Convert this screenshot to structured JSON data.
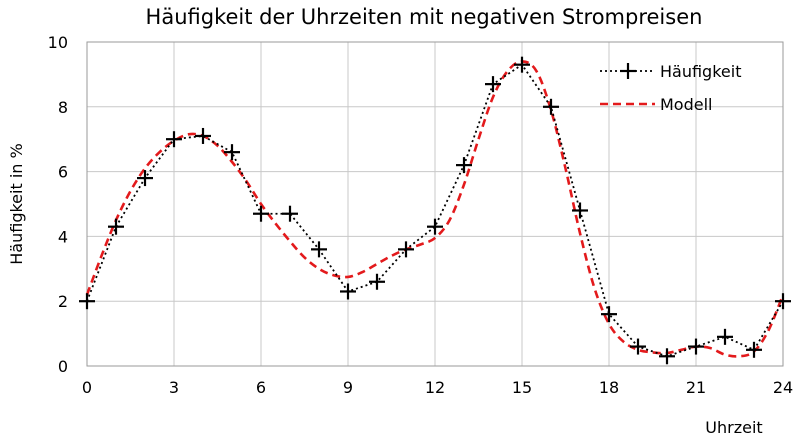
{
  "chart_data": {
    "type": "line",
    "title": "Häufigkeit der Uhrzeiten mit negativen Strompreisen",
    "xlabel": "Uhrzeit",
    "ylabel": "Häufigkeit  in  %",
    "xlim": [
      0,
      24
    ],
    "ylim": [
      0,
      10
    ],
    "xticks": [
      0,
      3,
      6,
      9,
      12,
      15,
      18,
      21,
      24
    ],
    "yticks": [
      0,
      2,
      4,
      6,
      8,
      10
    ],
    "grid": true,
    "legend_position": "top-right",
    "series": [
      {
        "name": "Häufigkeit",
        "style": "dotted-black-with-plus-markers",
        "color": "#000000",
        "x": [
          0,
          1,
          2,
          3,
          4,
          5,
          6,
          7,
          8,
          9,
          10,
          11,
          12,
          13,
          14,
          15,
          16,
          17,
          18,
          19,
          20,
          21,
          22,
          23,
          24
        ],
        "y": [
          2.0,
          4.3,
          5.8,
          7.0,
          7.1,
          6.6,
          4.7,
          4.7,
          3.6,
          2.3,
          2.6,
          3.6,
          4.3,
          6.2,
          8.7,
          9.3,
          8.0,
          4.8,
          1.6,
          0.6,
          0.3,
          0.6,
          0.9,
          0.5,
          2.0
        ]
      },
      {
        "name": "Modell",
        "style": "dashed-red",
        "color": "#e31a1c",
        "x": [
          0,
          0.5,
          1,
          1.5,
          2,
          2.5,
          3,
          3.5,
          4,
          4.5,
          5,
          5.5,
          6,
          6.5,
          7,
          7.5,
          8,
          8.5,
          9,
          9.5,
          10,
          10.5,
          11,
          11.5,
          12,
          12.5,
          13,
          13.5,
          14,
          14.5,
          15,
          15.5,
          16,
          16.5,
          17,
          17.5,
          18,
          18.5,
          19,
          19.5,
          20,
          20.5,
          21,
          21.5,
          22,
          22.5,
          23,
          23.5,
          24
        ],
        "y": [
          2.2,
          3.4,
          4.5,
          5.4,
          6.1,
          6.6,
          6.95,
          7.15,
          7.1,
          6.8,
          6.3,
          5.7,
          5.0,
          4.4,
          3.85,
          3.35,
          3.0,
          2.8,
          2.75,
          2.9,
          3.15,
          3.4,
          3.6,
          3.75,
          3.95,
          4.5,
          5.6,
          7.0,
          8.3,
          9.1,
          9.4,
          9.1,
          7.9,
          6.1,
          4.1,
          2.4,
          1.3,
          0.75,
          0.5,
          0.42,
          0.4,
          0.5,
          0.6,
          0.55,
          0.35,
          0.3,
          0.45,
          1.1,
          2.2
        ]
      }
    ]
  }
}
